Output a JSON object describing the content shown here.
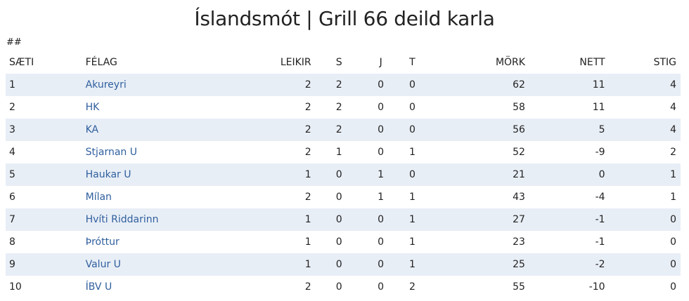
{
  "title": "Íslandsmót | Grill 66 deild karla",
  "marker": "##",
  "columns": [
    "SÆTI",
    "FÉLAG",
    "LEIKIR",
    "S",
    "J",
    "T",
    "MÖRK",
    "NETT",
    "STIG"
  ],
  "rows": [
    [
      "1",
      "Akureyri",
      "2",
      "2",
      "0",
      "0",
      "62",
      "11",
      "4"
    ],
    [
      "2",
      "HK",
      "2",
      "2",
      "0",
      "0",
      "58",
      "11",
      "4"
    ],
    [
      "3",
      "KA",
      "2",
      "2",
      "0",
      "0",
      "56",
      "5",
      "4"
    ],
    [
      "4",
      "Stjarnan U",
      "2",
      "1",
      "0",
      "1",
      "52",
      "-9",
      "2"
    ],
    [
      "5",
      "Haukar U",
      "1",
      "0",
      "1",
      "0",
      "21",
      "0",
      "1"
    ],
    [
      "6",
      "Mílan",
      "2",
      "0",
      "1",
      "1",
      "43",
      "-4",
      "1"
    ],
    [
      "7",
      "Hvíti Riddarinn",
      "1",
      "0",
      "0",
      "1",
      "27",
      "-1",
      "0"
    ],
    [
      "8",
      "Þróttur",
      "1",
      "0",
      "0",
      "1",
      "23",
      "-1",
      "0"
    ],
    [
      "9",
      "Valur U",
      "1",
      "0",
      "0",
      "1",
      "25",
      "-2",
      "0"
    ],
    [
      "10",
      "ÍBV U",
      "2",
      "0",
      "0",
      "2",
      "55",
      "-10",
      "0"
    ]
  ],
  "colors": {
    "link": "#2f5f9e",
    "stripe": "#e8eef6"
  }
}
